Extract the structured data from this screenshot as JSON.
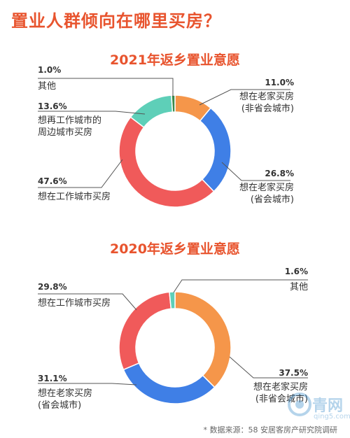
{
  "main_title": "置业人群倾向在哪里买房？",
  "footnote": "* 数据来源：58 安居客房产研究院调研",
  "watermark": {
    "name": "青网",
    "url": "qing5.com"
  },
  "colors": {
    "title": "#e8542e",
    "orange": "#f5964a",
    "blue": "#3f7fe6",
    "red": "#f05a5a",
    "teal": "#5ecfb8",
    "green": "#3a8a4a"
  },
  "chart_data": [
    {
      "type": "pie",
      "title": "2021年返乡置业意愿",
      "slices": [
        {
          "label": "想在老家买房\n(非省会城市)",
          "value": 11.0,
          "display": "11.0%",
          "color": "#f5964a"
        },
        {
          "label": "想在老家买房\n(省会城市)",
          "value": 26.8,
          "display": "26.8%",
          "color": "#3f7fe6"
        },
        {
          "label": "想在工作城市买房",
          "value": 47.6,
          "display": "47.6%",
          "color": "#f05a5a"
        },
        {
          "label": "想再工作城市的\n周边城市买房",
          "value": 13.6,
          "display": "13.6%",
          "color": "#5ecfb8"
        },
        {
          "label": "其他",
          "value": 1.0,
          "display": "1.0%",
          "color": "#3a8a4a"
        }
      ]
    },
    {
      "type": "pie",
      "title": "2020年返乡置业意愿",
      "slices": [
        {
          "label": "想在老家买房\n(非省会城市)",
          "value": 37.5,
          "display": "37.5%",
          "color": "#f5964a"
        },
        {
          "label": "想在老家买房\n(省会城市)",
          "value": 31.1,
          "display": "31.1%",
          "color": "#3f7fe6"
        },
        {
          "label": "想在工作城市买房",
          "value": 29.8,
          "display": "29.8%",
          "color": "#f05a5a"
        },
        {
          "label": "其他",
          "value": 1.6,
          "display": "1.6%",
          "color": "#5ecfb8"
        }
      ]
    }
  ]
}
